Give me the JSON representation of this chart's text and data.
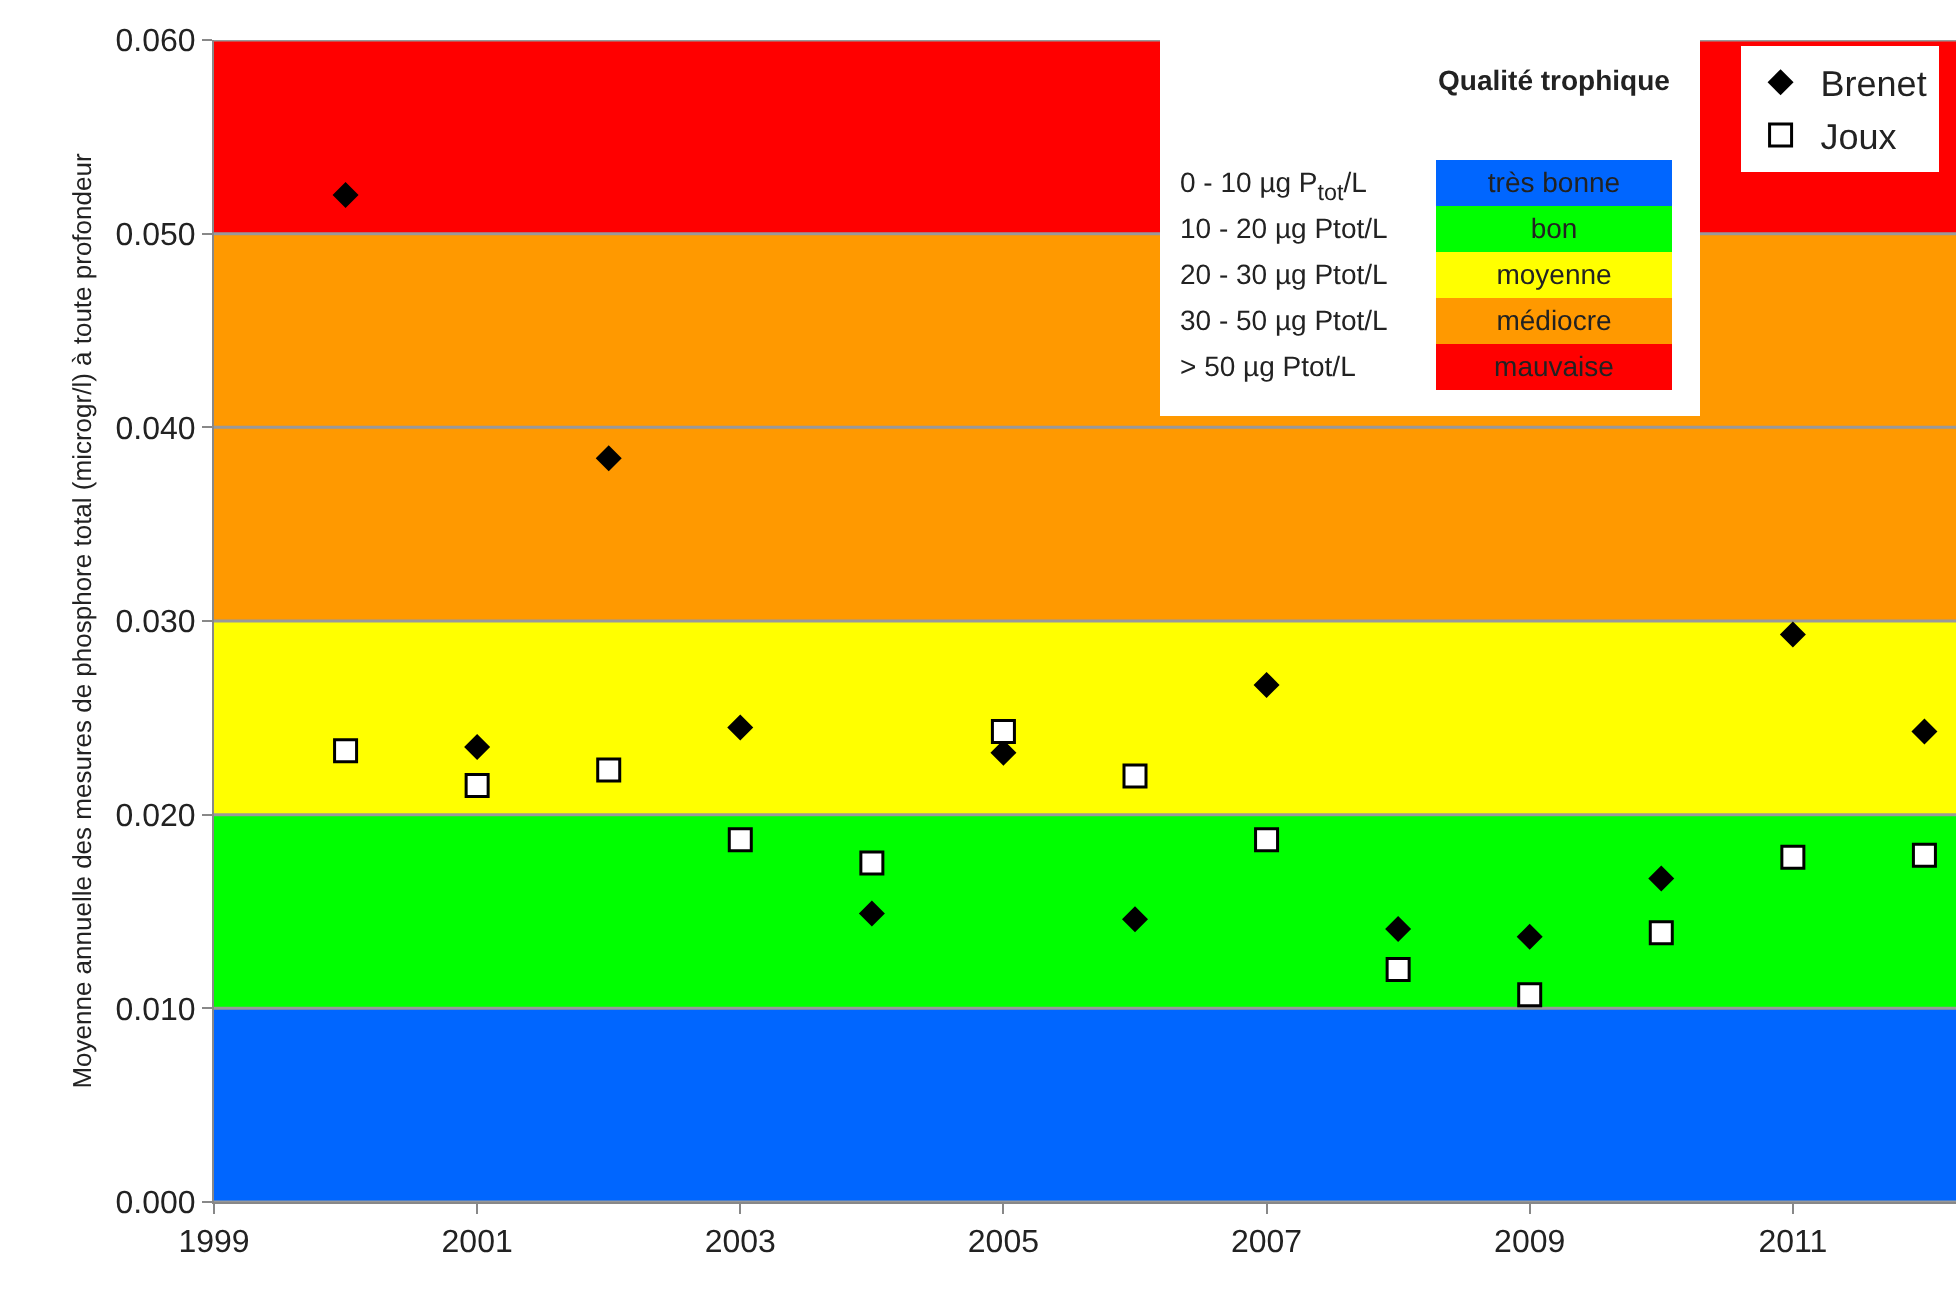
{
  "chart_data": {
    "type": "scatter",
    "ylabel": "Moyenne annuelle des mesures de phosphore total (microgr/l) à toute profondeur",
    "legend_title": "Qualité trophique",
    "x": [
      2000,
      2001,
      2002,
      2003,
      2004,
      2005,
      2006,
      2007,
      2008,
      2009,
      2010,
      2011,
      2012
    ],
    "series": [
      {
        "name": "Brenet",
        "color": "#000000",
        "marker": "diamond",
        "values": [
          0.052,
          0.0235,
          0.0384,
          0.0245,
          0.0149,
          0.0232,
          0.0146,
          0.0267,
          0.0141,
          0.0137,
          0.0167,
          0.0293,
          0.0243
        ]
      },
      {
        "name": "Joux",
        "color": "#000000",
        "marker": "square",
        "values": [
          0.0233,
          0.0215,
          0.0223,
          0.0187,
          0.0175,
          0.0243,
          0.022,
          0.0187,
          0.012,
          0.0107,
          0.0139,
          0.0178,
          0.0179
        ]
      }
    ],
    "bands": [
      {
        "axis": "y",
        "from": 0,
        "to": 0.01,
        "label": "très bonne",
        "color": "#0066ff"
      },
      {
        "axis": "y",
        "from": 0.01,
        "to": 0.02,
        "label": "bon",
        "color": "#00ff00"
      },
      {
        "axis": "y",
        "from": 0.02,
        "to": 0.03,
        "label": "moyenne",
        "color": "#ffff00"
      },
      {
        "axis": "y",
        "from": 0.03,
        "to": 0.05,
        "label": "médiocre",
        "color": "#ff9900"
      },
      {
        "axis": "y",
        "from": 0.05,
        "to": 0.06,
        "label": "mauvaise",
        "color": "#ff0000"
      }
    ],
    "annotations": [
      "0 - 10 µg P$_{tot}$/L",
      "10 - 20 µg Ptot/L",
      "20 - 30 µg Ptot/L",
      "30 - 50 µg Ptot/L",
      "> 50 µg Ptot/L"
    ],
    "xlim": [
      1999,
      2012.24
    ],
    "xticks": [
      1999,
      2001,
      2003,
      2005,
      2007,
      2009,
      2011
    ],
    "ylim": [
      0,
      0.06
    ],
    "yticks": [
      {
        "value": 0,
        "label": "0.000"
      },
      {
        "value": 0.01,
        "label": "0.010"
      },
      {
        "value": 0.02,
        "label": "0.020"
      },
      {
        "value": 0.03,
        "label": "0.030"
      },
      {
        "value": 0.04,
        "label": "0.040"
      },
      {
        "value": 0.05,
        "label": "0.050"
      },
      {
        "value": 0.06,
        "label": "0.060"
      }
    ],
    "grid": "y",
    "legend": "top right"
  }
}
